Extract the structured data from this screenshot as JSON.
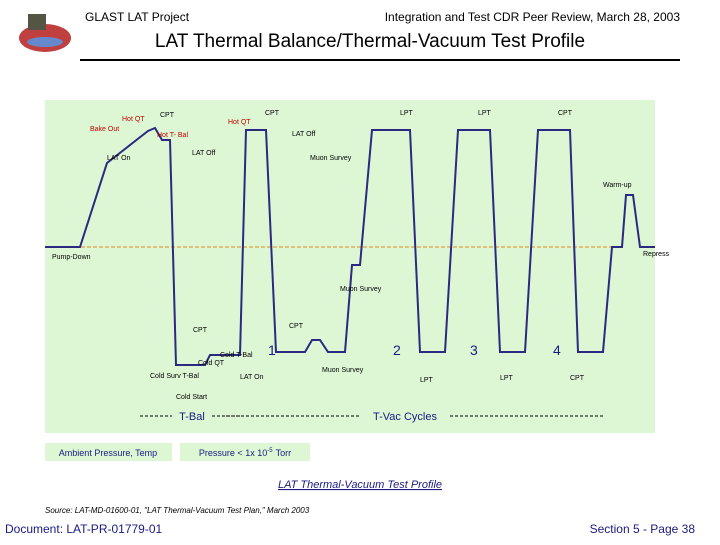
{
  "header": {
    "project": "GLAST LAT Project",
    "meeting": "Integration and Test CDR Peer Review, March 28, 2003",
    "title": "LAT Thermal Balance/Thermal-Vacuum Test Profile"
  },
  "diagram": {
    "labels": [
      "Hot QT",
      "CPT",
      "Bake Out",
      "Hot T- Bal",
      "LAT On",
      "LAT Off",
      "Hot QT",
      "CPT",
      "LAT Off",
      "Muon Survey",
      "LPT",
      "LPT",
      "CPT",
      "Warm-up",
      "Pump-Down",
      "Repress",
      "Muon Survey",
      "CPT",
      "CPT",
      "Cold T-Bal",
      "Cold QT",
      "Cold Surv T-Bal",
      "LAT On",
      "Muon Survey",
      "LPT",
      "LPT",
      "CPT",
      "Cold Start"
    ],
    "cycles": [
      "1",
      "2",
      "3",
      "4"
    ],
    "phases": [
      "T-Bal",
      "T-Vac Cycles"
    ],
    "legend": {
      "ambient": "Ambient Pressure, Temp",
      "vacuum": {
        "text": "Pressure < 1x 10",
        "exponent": "-5",
        "unit": "Torr"
      }
    }
  },
  "caption": "LAT Thermal-Vacuum Test Profile",
  "source": "Source:  LAT-MD-01600-01, \"LAT Thermal-Vacuum Test Plan,\" March 2003",
  "footer": {
    "document": "Document: LAT-PR-01779-01",
    "page": "Section 5 - Page 38"
  }
}
